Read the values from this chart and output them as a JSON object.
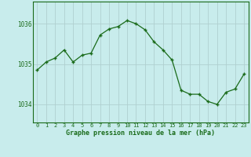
{
  "x": [
    0,
    1,
    2,
    3,
    4,
    5,
    6,
    7,
    8,
    9,
    10,
    11,
    12,
    13,
    14,
    15,
    16,
    17,
    18,
    19,
    20,
    21,
    22,
    23
  ],
  "y": [
    1034.85,
    1035.05,
    1035.15,
    1035.35,
    1035.05,
    1035.22,
    1035.27,
    1035.72,
    1035.87,
    1035.93,
    1036.08,
    1036.0,
    1035.85,
    1035.55,
    1035.35,
    1035.1,
    1034.35,
    1034.25,
    1034.25,
    1034.07,
    1034.0,
    1034.3,
    1034.38,
    1034.75
  ],
  "line_color": "#1a6b1a",
  "marker_color": "#1a6b1a",
  "bg_color": "#c8ecec",
  "grid_color": "#b0d0d0",
  "xlabel": "Graphe pression niveau de la mer (hPa)",
  "xlabel_color": "#1a6b1a",
  "tick_color": "#1a6b1a",
  "yticks": [
    1034,
    1035,
    1036
  ],
  "ylim": [
    1033.55,
    1036.55
  ],
  "xlim": [
    -0.5,
    23.5
  ],
  "xtick_labels": [
    "0",
    "1",
    "2",
    "3",
    "4",
    "5",
    "6",
    "7",
    "8",
    "9",
    "10",
    "11",
    "12",
    "13",
    "14",
    "15",
    "16",
    "17",
    "18",
    "19",
    "20",
    "21",
    "22",
    "23"
  ]
}
